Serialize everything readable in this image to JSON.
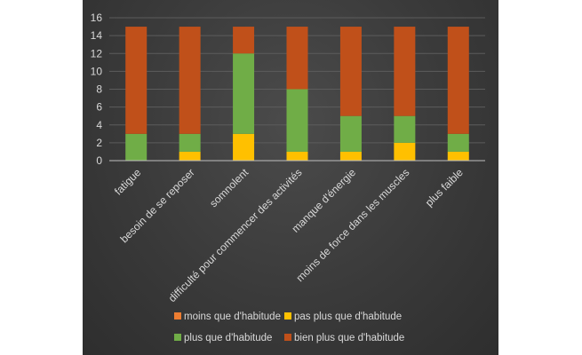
{
  "chart_data": {
    "type": "bar",
    "stacked": true,
    "categories": [
      "fatigue",
      "besoin de se reposer",
      "somnolent",
      "difficulté pour commencer des activités",
      "manque d'énergie",
      "moins de force dans les muscles",
      "plus faible"
    ],
    "series": [
      {
        "name": "moins que d'habitude",
        "color": "#ed7d31",
        "values": [
          0,
          0,
          0,
          0,
          0,
          0,
          0
        ]
      },
      {
        "name": "pas plus que d'habitude",
        "color": "#ffc000",
        "values": [
          0,
          1,
          3,
          1,
          1,
          2,
          1
        ]
      },
      {
        "name": "plus que d'habitude",
        "color": "#70ad47",
        "values": [
          3,
          2,
          9,
          7,
          4,
          3,
          2
        ]
      },
      {
        "name": "bien plus que d'habitude",
        "color": "#c0501a",
        "values": [
          12,
          12,
          3,
          7,
          10,
          10,
          12
        ]
      }
    ],
    "ylim": [
      0,
      16
    ],
    "yticks": [
      0,
      2,
      4,
      6,
      8,
      10,
      12,
      14,
      16
    ],
    "grid": true,
    "legend_position": "bottom",
    "title": "",
    "xlabel": "",
    "ylabel": ""
  }
}
